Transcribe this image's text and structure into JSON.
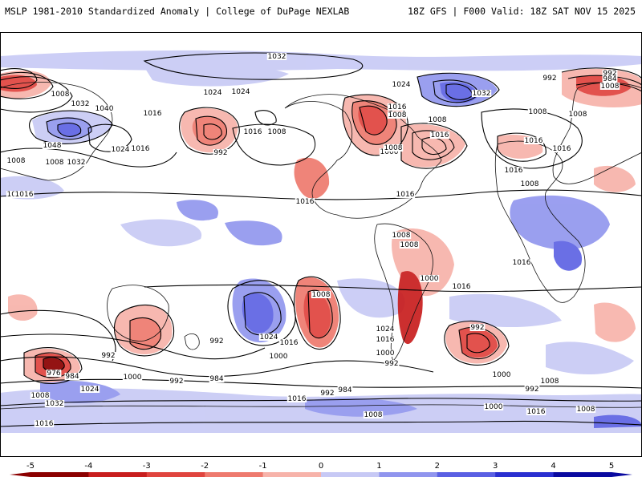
{
  "header": {
    "title": "MSLP 1981-2010 Standardized Anomaly | College of DuPage NEXLAB",
    "run_info": "18Z GFS | F000 Valid: 18Z SAT NOV 15 2025"
  },
  "colorbar": {
    "min": -5,
    "max": 5,
    "ticks": [
      "-5",
      "-4",
      "-3",
      "-2",
      "-1",
      "0",
      "1",
      "2",
      "3",
      "4",
      "5"
    ],
    "colors": [
      "#8b0000",
      "#c81e1e",
      "#e0443e",
      "#ee7a6e",
      "#f7b3aa",
      "#ffffff",
      "#c7c9f5",
      "#9095ee",
      "#5a60e3",
      "#2a2fd0",
      "#0a0aa0"
    ]
  },
  "colors": {
    "negative_anomaly": "#e8685c",
    "positive_anomaly": "#8a8ff0",
    "isobar": "#000000",
    "coastline": "#111111"
  },
  "isobar_labels": [
    "1032",
    "1024",
    "1008",
    "992",
    "984",
    "1008",
    "1032",
    "1040",
    "1048",
    "1016",
    "1024",
    "1024",
    "1032",
    "1008",
    "1016",
    "1008",
    "1016",
    "992",
    "1016",
    "1008",
    "1024",
    "1032",
    "1016",
    "1008",
    "1000",
    "1016",
    "1008",
    "1016",
    "1008",
    "1016",
    "1008",
    "1016",
    "1016",
    "1008",
    "1008",
    "1016",
    "1016",
    "1016",
    "1016",
    "1000",
    "1008",
    "992",
    "992",
    "1008",
    "1024",
    "1016",
    "1000",
    "1024",
    "1016",
    "1000",
    "992",
    "992",
    "984",
    "1008",
    "1000",
    "1024",
    "976",
    "984",
    "992",
    "1000",
    "992",
    "984",
    "992",
    "1008",
    "1032",
    "1016",
    "1016",
    "1008",
    "1000",
    "1008",
    "1016",
    "992",
    "1008"
  ]
}
